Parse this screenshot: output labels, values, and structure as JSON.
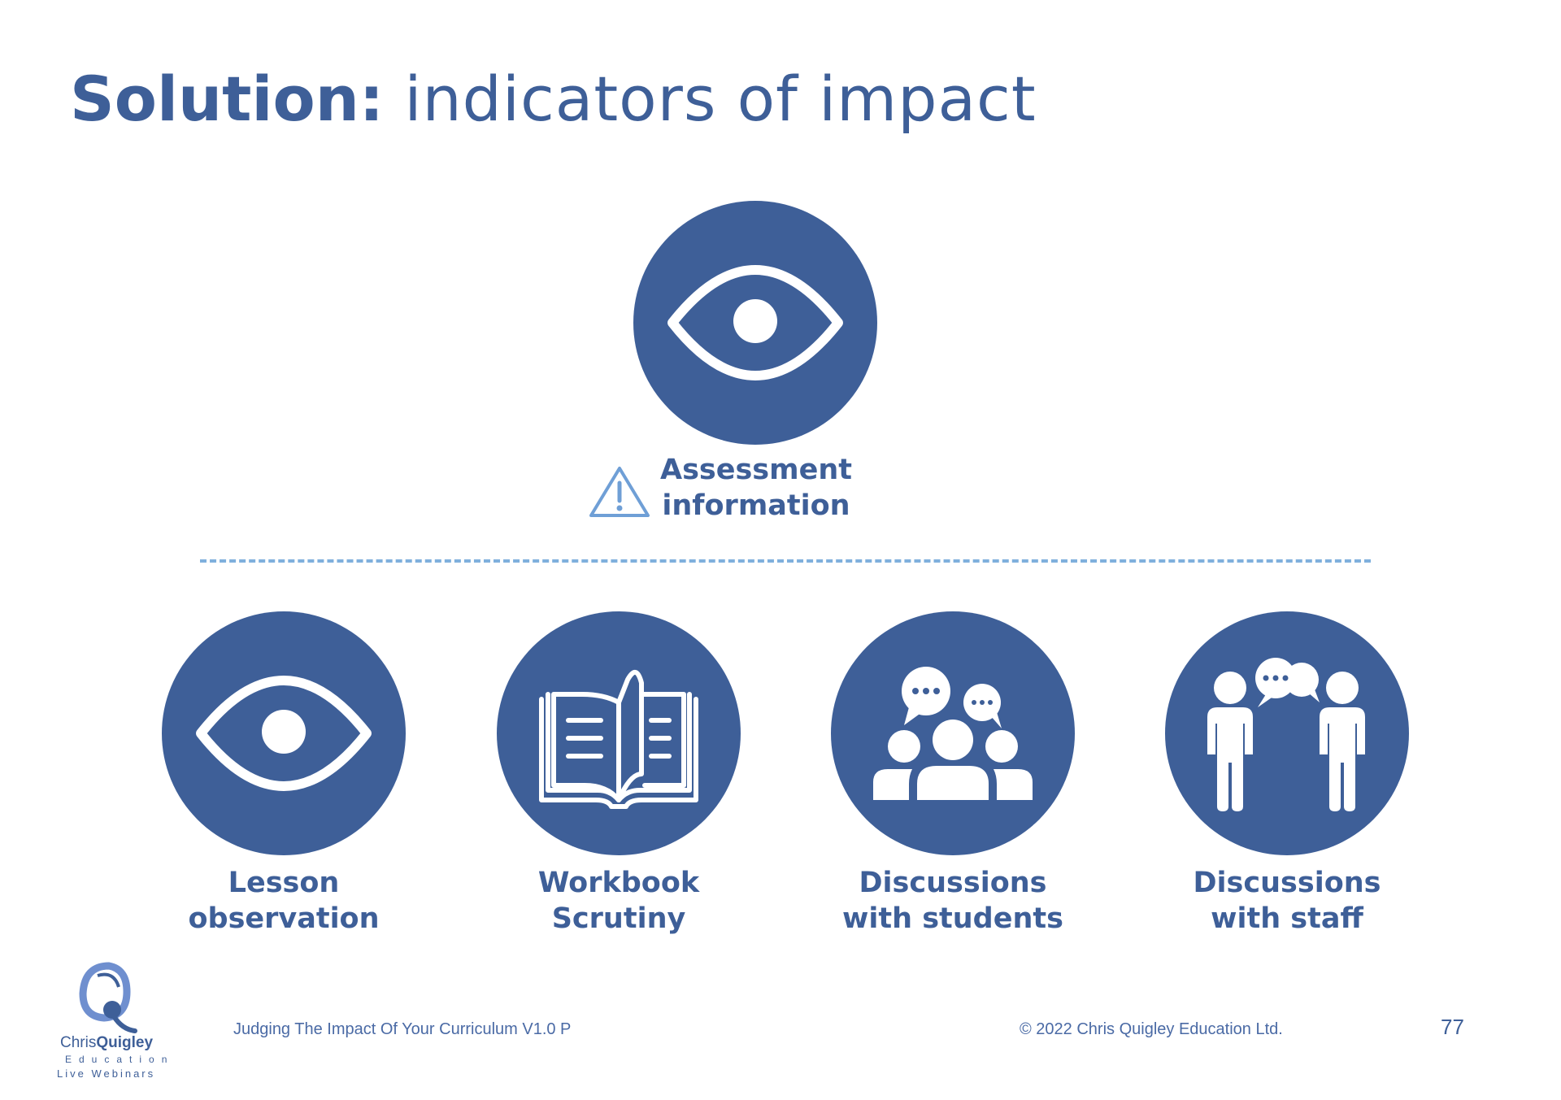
{
  "title": {
    "bold": "Solution:",
    "light": " indicators of impact"
  },
  "top_item": {
    "icon": "eye-icon",
    "line1": "Assessment",
    "line2": "information",
    "warning_icon": "warning-triangle-icon"
  },
  "items": [
    {
      "icon": "eye-icon",
      "line1": "Lesson",
      "line2": "observation"
    },
    {
      "icon": "open-book-icon",
      "line1": "Workbook",
      "line2": "Scrutiny"
    },
    {
      "icon": "group-chat-icon",
      "line1": "Discussions",
      "line2": "with students"
    },
    {
      "icon": "two-people-talking-icon",
      "line1": "Discussions",
      "line2": "with staff"
    }
  ],
  "footer": {
    "course": "Judging The Impact Of Your Curriculum V1.0 P",
    "copyright": "© 2022 Chris Quigley Education Ltd.",
    "page_number": "77"
  },
  "logo": {
    "name_regular": "Chris",
    "name_bold": "Quigley",
    "sub1": "Education",
    "sub2": "Live Webinars"
  },
  "colors": {
    "primary": "#3e5f98",
    "divider": "#7fb0dd",
    "warning": "#6f9fd6"
  }
}
